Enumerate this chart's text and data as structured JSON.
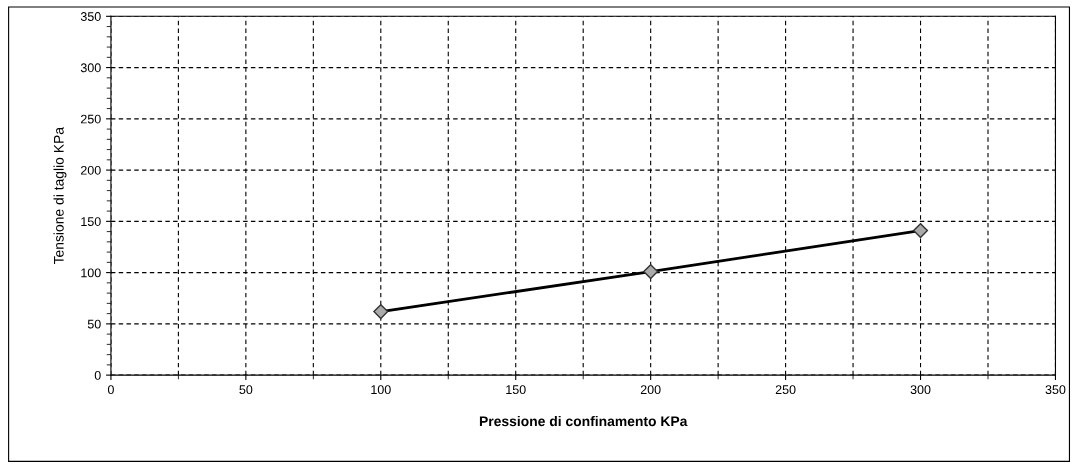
{
  "chart_data": {
    "type": "line",
    "xlabel": "Pressione di confinamento KPa",
    "ylabel": "Tensione di taglio KPa",
    "x": [
      100,
      200,
      300
    ],
    "series": [
      {
        "color": "#000000",
        "values": [
          62,
          101,
          141
        ]
      }
    ],
    "xlim": [
      0,
      350
    ],
    "xticks": [
      0,
      50,
      100,
      150,
      200,
      250,
      300,
      350
    ],
    "ylim": [
      0,
      350
    ],
    "yticks": [
      0,
      50,
      100,
      150,
      200,
      250,
      300,
      350
    ],
    "grid": true,
    "marker": "diamond",
    "line_style": "solid",
    "legend": false
  }
}
